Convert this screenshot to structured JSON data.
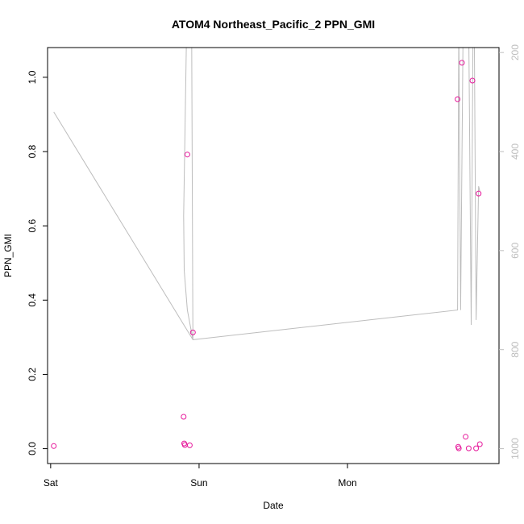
{
  "chart_data": {
    "type": "scatter",
    "title": "ATOM4 Northeast_Pacific_2 PPN_GMI",
    "xlabel": "Date",
    "ylabel": "PPN_GMI",
    "x_ticks": [
      "Sat",
      "Sun",
      "Mon"
    ],
    "x_tick_hours": [
      0,
      24,
      48
    ],
    "xlim_hours": [
      -0.5,
      72.5
    ],
    "ylim": [
      -0.04,
      1.08
    ],
    "y_ticks": [
      0.0,
      0.2,
      0.4,
      0.6,
      0.8,
      1.0
    ],
    "y2_ticks": [
      200,
      400,
      600,
      800,
      1000
    ],
    "y2lim_reversed": [
      1030,
      190
    ],
    "grid": false,
    "legend": "none",
    "colors": {
      "points": "#e6199b",
      "line": "#bdbdbd",
      "axis": "#000000",
      "right_axis": "#bdbdbd"
    },
    "series": [
      {
        "marker": "circle-open",
        "axis": "left",
        "x_hours": [
          0.5,
          21.5,
          21.6,
          21.7,
          22.1,
          22.5,
          23.0,
          65.8,
          65.9,
          66.0,
          66.5,
          67.1,
          67.6,
          68.2,
          68.8,
          69.2,
          69.4
        ],
        "y": [
          0.007,
          0.086,
          0.014,
          0.01,
          0.792,
          0.009,
          0.313,
          0.941,
          0.005,
          0.001,
          1.039,
          0.032,
          0.001,
          0.991,
          0.001,
          0.687,
          0.012
        ]
      },
      {
        "marker": "line",
        "axis": "right",
        "x_hours": [
          0.5,
          23.0,
          22.1,
          21.6,
          21.5,
          22.0,
          22.5,
          22.8,
          23.0,
          65.8,
          66.0,
          66.3,
          66.7,
          67.0,
          67.3,
          67.6,
          68.0,
          68.3,
          68.5,
          68.8,
          69.2,
          69.4
        ],
        "y": [
          320,
          780,
          720,
          640,
          530,
          140,
          140,
          140,
          780,
          720,
          140,
          720,
          140,
          140,
          140,
          140,
          750,
          140,
          140,
          740,
          470,
          480
        ]
      }
    ]
  }
}
